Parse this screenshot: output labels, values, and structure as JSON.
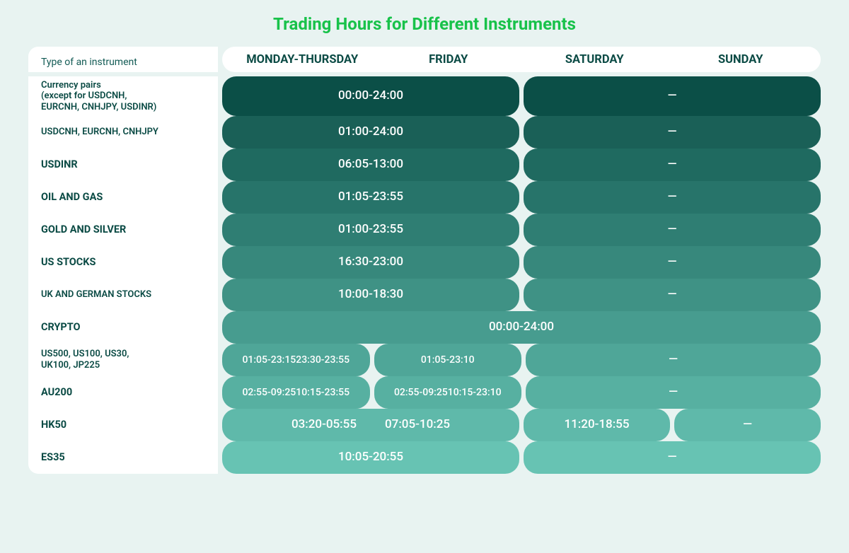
{
  "title": "Trading Hours for Different Instruments",
  "title_color": "#18c24a",
  "background_color": "#e8f3f1",
  "header": {
    "label": "Type of an instrument",
    "cols": [
      "MONDAY-THURSDAY",
      "FRIDAY",
      "SATURDAY",
      "SUNDAY"
    ]
  },
  "dash": "—",
  "rows": [
    {
      "label": "Currency pairs\n(except for USDCNH,\nEURCNH, CNHJPY, USDINR)",
      "label_style": "small",
      "tall": true,
      "color": "#0b4f47",
      "layout": "weekday_weekend",
      "weekday": "00:00-24:00",
      "weekend": "—"
    },
    {
      "label": "USDCNH, EURCNH, CNHJPY",
      "label_style": "small",
      "color": "#1a6057",
      "layout": "weekday_weekend",
      "weekday": "01:00-24:00",
      "weekend": "—"
    },
    {
      "label": "USDINR",
      "color": "#1f6a60",
      "layout": "weekday_weekend",
      "weekday": "06:05-13:00",
      "weekend": "—"
    },
    {
      "label": "OIL AND GAS",
      "color": "#27746a",
      "layout": "weekday_weekend",
      "weekday": "01:05-23:55",
      "weekend": "—"
    },
    {
      "label": "GOLD AND SILVER",
      "color": "#2f7e73",
      "layout": "weekday_weekend",
      "weekday": "01:00-23:55",
      "weekend": "—"
    },
    {
      "label": "US STOCKS",
      "color": "#37887c",
      "layout": "weekday_weekend",
      "weekday": "16:30-23:00",
      "weekend": "—"
    },
    {
      "label": "UK AND GERMAN STOCKS",
      "label_style": "small",
      "color": "#3f9285",
      "layout": "weekday_weekend",
      "weekday": "10:00-18:30",
      "weekend": "—"
    },
    {
      "label": "CRYPTO",
      "color": "#479c8f",
      "layout": "fullweek",
      "fullweek": "00:00-24:00"
    },
    {
      "label": "US500, US100, US30,\nUK100, JP225",
      "label_style": "small",
      "color": "#4fa698",
      "layout": "mtth_fri_weekend",
      "mtth": "01:05-23:15\n23:30-23:55",
      "fri": "01:05-23:10",
      "weekend": "—",
      "small_text": true
    },
    {
      "label": "AU200",
      "color": "#57b0a1",
      "layout": "mtth_fri_weekend",
      "mtth": "02:55-09:25\n10:15-23:55",
      "fri": "02:55-09:25\n10:15-23:10",
      "weekend": "—",
      "small_text": true
    },
    {
      "label": "HK50",
      "color": "#5fb9aa",
      "layout": "hk50",
      "seg1": "03:20-05:55",
      "seg2": "07:05-10:25",
      "fri": "11:20-18:55",
      "weekend": "—"
    },
    {
      "label": "ES35",
      "color": "#67c3b3",
      "layout": "weekday_weekend",
      "weekday": "10:05-20:55",
      "weekend": "—",
      "last": true
    }
  ]
}
